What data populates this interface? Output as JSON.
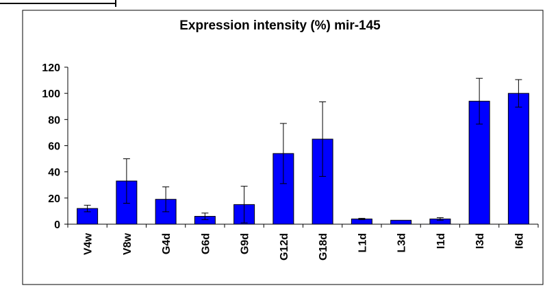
{
  "colors": {
    "bar": "#0000ff",
    "bar_stroke": "#000000",
    "frame": "#000000",
    "background": "#ffffff"
  },
  "chart_data": {
    "type": "bar",
    "title": "Expression intensity (%) mir-145",
    "xlabel": "",
    "ylabel": "",
    "categories": [
      "V4w",
      "V8w",
      "G4d",
      "G6d",
      "G9d",
      "G12d",
      "G18d",
      "L1d",
      "L3d",
      "I1d",
      "I3d",
      "I6d"
    ],
    "values": [
      12,
      33,
      19,
      6,
      15,
      54,
      65,
      4,
      3,
      4,
      94,
      100
    ],
    "errors": [
      2.5,
      17,
      9.5,
      2.5,
      14,
      23,
      28.5,
      0.5,
      0,
      1,
      17.5,
      10.5
    ],
    "ylim": [
      0,
      120
    ],
    "yticks": [
      0,
      20,
      40,
      60,
      80,
      100,
      120
    ],
    "grid": false,
    "legend": "none"
  }
}
